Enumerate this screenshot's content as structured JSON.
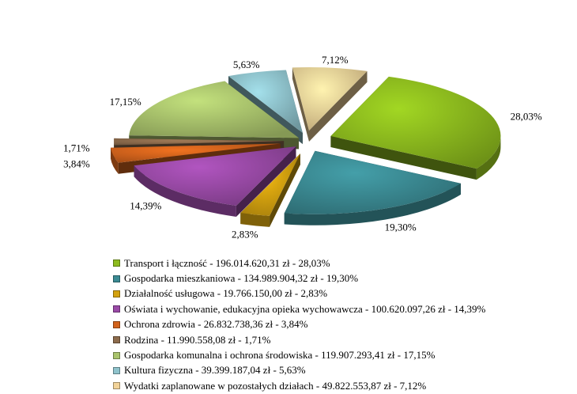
{
  "chart_data": {
    "type": "pie",
    "style": "3d-exploded",
    "slices": [
      {
        "label": "Transport i łączność",
        "amount": "196.014.620,31 zł",
        "percent_label": "28,03%",
        "value": 28.03,
        "color": "#8dbb1e"
      },
      {
        "label": "Gospodarka mieszkaniowa",
        "amount": "134.989.904,32 zł",
        "percent_label": "19,30%",
        "value": 19.3,
        "color": "#3b8a93"
      },
      {
        "label": "Działalność usługowa",
        "amount": "19.766.150,00 zł",
        "percent_label": "2,83%",
        "value": 2.83,
        "color": "#d4a20f"
      },
      {
        "label": "Oświata i wychowanie, edukacyjna opieka wychowawcza",
        "amount": "100.620.097,26 zł",
        "percent_label": "14,39%",
        "value": 14.39,
        "color": "#9a4aa7"
      },
      {
        "label": "Ochrona zdrowia",
        "amount": "26.832.738,36 zł",
        "percent_label": "3,84%",
        "value": 3.84,
        "color": "#d2631c"
      },
      {
        "label": "Rodzina",
        "amount": "11.990.558,08 zł",
        "percent_label": "1,71%",
        "value": 1.71,
        "color": "#8c6b4c"
      },
      {
        "label": "Gospodarka komunalna i ochrona środowiska",
        "amount": "119.907.293,41 zł",
        "percent_label": "17,15%",
        "value": 17.15,
        "color": "#aac46d"
      },
      {
        "label": "Kultura fizyczna",
        "amount": "39.399.187,04 zł",
        "percent_label": "5,63%",
        "value": 5.63,
        "color": "#8fc3cc"
      },
      {
        "label": "Wydatki zaplanowane w pozostałych działach",
        "amount": "49.822.553,87 zł",
        "percent_label": "7,12%",
        "value": 7.12,
        "color": "#f2d399"
      }
    ],
    "legend_position": "bottom"
  },
  "legend": {
    "items": [
      {
        "text": "Transport i łączność -  196.014.620,31 zł - 28,03%"
      },
      {
        "text": "Gospodarka mieszkaniowa -  134.989.904,32 zł - 19,30%"
      },
      {
        "text": "Działalność usługowa -  19.766.150,00 zł - 2,83%"
      },
      {
        "text": "Oświata i wychowanie, edukacyjna opieka wychowawcza -  100.620.097,26 zł - 14,39%"
      },
      {
        "text": "Ochrona zdrowia -  26.832.738,36 zł - 3,84%"
      },
      {
        "text": "Rodzina  - 11.990.558,08 zł - 1,71%"
      },
      {
        "text": "Gospodarka komunalna i ochrona środowiska -  119.907.293,41 zł - 17,15%"
      },
      {
        "text": "Kultura fizyczna -  39.399.187,04 zł - 5,63%"
      },
      {
        "text": "Wydatki zaplanowane w pozostałych działach -  49.822.553,87 zł - 7,12%"
      }
    ]
  }
}
